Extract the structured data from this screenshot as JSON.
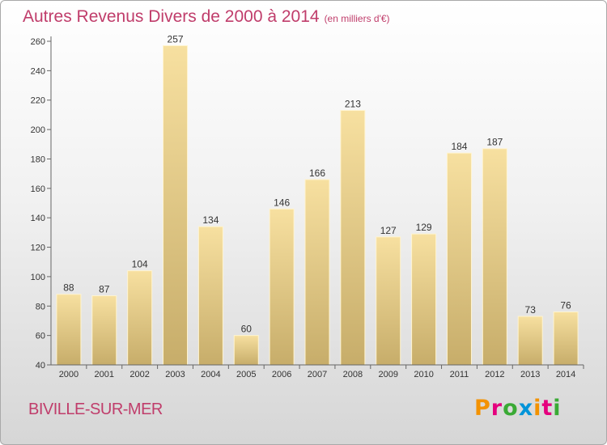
{
  "chart_data": {
    "type": "bar",
    "title": "Autres Revenus Divers de 2000 à 2014",
    "subtitle": "(en milliers d'€)",
    "xlabel": "",
    "ylabel": "",
    "categories": [
      "2000",
      "2001",
      "2002",
      "2003",
      "2004",
      "2005",
      "2006",
      "2007",
      "2008",
      "2009",
      "2010",
      "2011",
      "2012",
      "2013",
      "2014"
    ],
    "values": [
      88,
      87,
      104,
      257,
      134,
      60,
      146,
      166,
      213,
      127,
      129,
      184,
      187,
      73,
      76
    ],
    "ylim": [
      40,
      260
    ],
    "yticks": [
      40,
      60,
      80,
      100,
      120,
      140,
      160,
      180,
      200,
      220,
      240,
      260
    ],
    "grid": false,
    "bar_color_top": "#f7e0a0",
    "bar_color_bottom": "#c7ad6a"
  },
  "footer": {
    "commune": "BIVILLE-SUR-MER",
    "logo": "Proxiti"
  },
  "colors": {
    "title": "#c03d6b",
    "logo_letters": [
      "#f39200",
      "#e5007e",
      "#3aaa35",
      "#0094d9",
      "#f39200",
      "#e5007e",
      "#3aaa35"
    ]
  }
}
